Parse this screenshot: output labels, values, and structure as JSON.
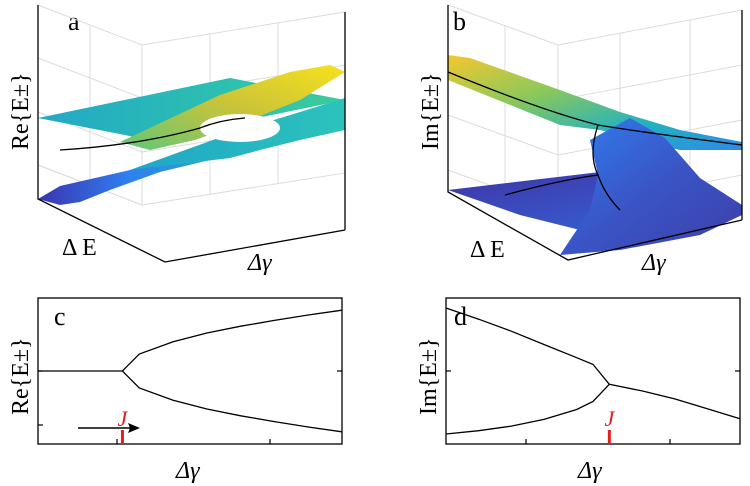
{
  "chart_data": [
    {
      "panel": "a",
      "type": "surface",
      "ylabel": "Re{E±}",
      "xlabel": "Δ E",
      "zlabel": "Δγ",
      "colormap": [
        "#3d26a8",
        "#2f7ff0",
        "#22b0c2",
        "#62c87a",
        "#f0c22e",
        "#f9e21a"
      ]
    },
    {
      "panel": "b",
      "type": "surface",
      "ylabel": "Im{E±}",
      "xlabel": "Δ E",
      "zlabel": "Δγ",
      "colormap": [
        "#3d26a8",
        "#2f7ff0",
        "#22b0c2",
        "#62c87a",
        "#f0c22e",
        "#f9e21a"
      ]
    },
    {
      "panel": "c",
      "type": "line",
      "ylabel": "Re{E±}",
      "xlabel": "Δγ",
      "marker_label": "J",
      "marker_x": 0.5,
      "arrow": "right",
      "xlim": [
        0,
        1.8
      ],
      "ylim": [
        -1.5,
        1.5
      ],
      "series": [
        {
          "x": [
            0,
            0.5,
            0.6,
            0.8,
            1.0,
            1.2,
            1.4,
            1.6,
            1.8
          ],
          "y": [
            0,
            0,
            0.35,
            0.6,
            0.78,
            0.92,
            1.04,
            1.15,
            1.25
          ]
        },
        {
          "x": [
            0.5,
            0.6,
            0.8,
            1.0,
            1.2,
            1.4,
            1.6,
            1.8
          ],
          "y": [
            0,
            -0.35,
            -0.6,
            -0.78,
            -0.92,
            -1.04,
            -1.15,
            -1.25
          ]
        }
      ]
    },
    {
      "panel": "d",
      "type": "line",
      "ylabel": "Im{E±}",
      "xlabel": "Δγ",
      "marker_label": "J",
      "marker_x": 1.0,
      "xlim": [
        0,
        1.8
      ],
      "ylim": [
        -1.1,
        1.1
      ],
      "series": [
        {
          "x": [
            0,
            0.2,
            0.4,
            0.6,
            0.8,
            0.9,
            1.0
          ],
          "y": [
            0.95,
            0.78,
            0.6,
            0.4,
            0.2,
            0.1,
            -0.2
          ]
        },
        {
          "x": [
            0,
            0.2,
            0.4,
            0.6,
            0.8,
            0.9,
            1.0
          ],
          "y": [
            -0.95,
            -0.9,
            -0.83,
            -0.73,
            -0.58,
            -0.46,
            -0.2
          ]
        },
        {
          "x": [
            1.0,
            1.2,
            1.4,
            1.6,
            1.8
          ],
          "y": [
            -0.2,
            -0.3,
            -0.42,
            -0.57,
            -0.72
          ]
        }
      ]
    }
  ]
}
